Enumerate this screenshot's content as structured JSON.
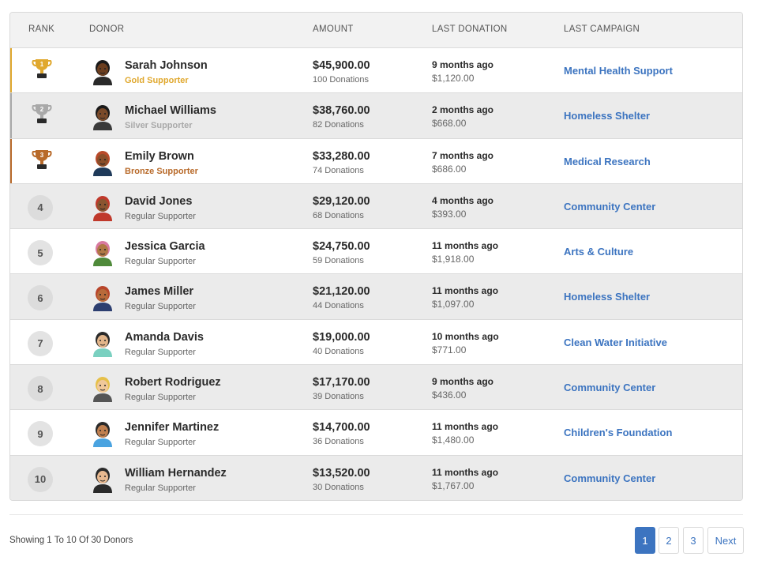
{
  "headers": {
    "rank": "RANK",
    "donor": "DONOR",
    "amount": "AMOUNT",
    "last_donation": "LAST DONATION",
    "last_campaign": "LAST CAMPAIGN"
  },
  "colors": {
    "gold": "#e0a82e",
    "silver": "#a9a9a9",
    "bronze": "#b86a2a",
    "link": "#3c74c0"
  },
  "donors": [
    {
      "rank": "1",
      "trophy": "gold",
      "name": "Sarah Johnson",
      "tier": "Gold Supporter",
      "amount": "$45,900.00",
      "donations": "100 Donations",
      "last_when": "9 months ago",
      "last_amount": "$1,120.00",
      "campaign": "Mental Health Support"
    },
    {
      "rank": "2",
      "trophy": "silver",
      "name": "Michael Williams",
      "tier": "Silver Supporter",
      "amount": "$38,760.00",
      "donations": "82 Donations",
      "last_when": "2 months ago",
      "last_amount": "$668.00",
      "campaign": "Homeless Shelter"
    },
    {
      "rank": "3",
      "trophy": "bronze",
      "name": "Emily Brown",
      "tier": "Bronze Supporter",
      "amount": "$33,280.00",
      "donations": "74 Donations",
      "last_when": "7 months ago",
      "last_amount": "$686.00",
      "campaign": "Medical Research"
    },
    {
      "rank": "4",
      "trophy": "",
      "name": "David Jones",
      "tier": "Regular Supporter",
      "amount": "$29,120.00",
      "donations": "68 Donations",
      "last_when": "4 months ago",
      "last_amount": "$393.00",
      "campaign": "Community Center"
    },
    {
      "rank": "5",
      "trophy": "",
      "name": "Jessica Garcia",
      "tier": "Regular Supporter",
      "amount": "$24,750.00",
      "donations": "59 Donations",
      "last_when": "11 months ago",
      "last_amount": "$1,918.00",
      "campaign": "Arts & Culture"
    },
    {
      "rank": "6",
      "trophy": "",
      "name": "James Miller",
      "tier": "Regular Supporter",
      "amount": "$21,120.00",
      "donations": "44 Donations",
      "last_when": "11 months ago",
      "last_amount": "$1,097.00",
      "campaign": "Homeless Shelter"
    },
    {
      "rank": "7",
      "trophy": "",
      "name": "Amanda Davis",
      "tier": "Regular Supporter",
      "amount": "$19,000.00",
      "donations": "40 Donations",
      "last_when": "10 months ago",
      "last_amount": "$771.00",
      "campaign": "Clean Water Initiative"
    },
    {
      "rank": "8",
      "trophy": "",
      "name": "Robert Rodriguez",
      "tier": "Regular Supporter",
      "amount": "$17,170.00",
      "donations": "39 Donations",
      "last_when": "9 months ago",
      "last_amount": "$436.00",
      "campaign": "Community Center"
    },
    {
      "rank": "9",
      "trophy": "",
      "name": "Jennifer Martinez",
      "tier": "Regular Supporter",
      "amount": "$14,700.00",
      "donations": "36 Donations",
      "last_when": "11 months ago",
      "last_amount": "$1,480.00",
      "campaign": "Children's Foundation"
    },
    {
      "rank": "10",
      "trophy": "",
      "name": "William Hernandez",
      "tier": "Regular Supporter",
      "amount": "$13,520.00",
      "donations": "30 Donations",
      "last_when": "11 months ago",
      "last_amount": "$1,767.00",
      "campaign": "Community Center"
    }
  ],
  "footer": {
    "showing": "Showing 1 To 10 Of 30 Donors",
    "pages": [
      "1",
      "2",
      "3"
    ],
    "active_page": "1",
    "next_label": "Next"
  }
}
